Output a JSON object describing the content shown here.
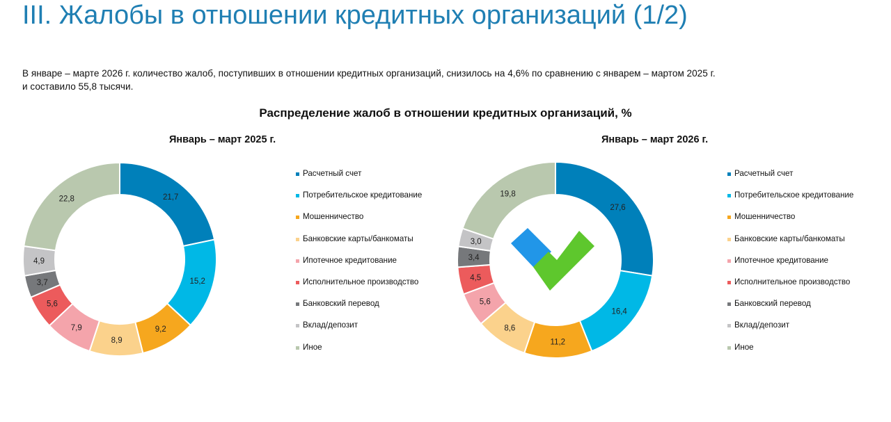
{
  "header": {
    "title": "III. Жалобы в отношении кредитных организаций (1/2)",
    "intro_line1": "В январе – марте 2026 г. количество жалоб, поступивших в отношении кредитных организаций, снизилось на 4,6% по сравнению с январем – мартом 2025 г.",
    "intro_line2": "и составило 55,8 тысячи."
  },
  "main_title": "Распределение жалоб в отношении кредитных организаций, %",
  "colors": {
    "title": "#1f7fb3",
    "categories": [
      "#0080ba",
      "#00b8e6",
      "#f6a71e",
      "#fbd28c",
      "#f4a4ab",
      "#ec5b5c",
      "#76787b",
      "#c4c4c6",
      "#b9c8ae"
    ],
    "logo_blue": "#2196e8",
    "logo_green": "#5ec72d"
  },
  "chart_data": [
    {
      "type": "pie",
      "title": "Январь – март 2025 г.",
      "categories": [
        "Расчетный счет",
        "Потребительское кредитование",
        "Мошенничество",
        "Банковские карты/банкоматы",
        "Ипотечное кредитование",
        "Исполнительное производство",
        "Банковский перевод",
        "Вклад/депозит",
        "Иное"
      ],
      "values": [
        21.7,
        15.2,
        9.2,
        8.9,
        7.9,
        5.6,
        3.7,
        4.9,
        22.8
      ],
      "value_labels": [
        "21,7",
        "15,2",
        "9,2",
        "8,9",
        "7,9",
        "5,6",
        "3,7",
        "4,9",
        "22,8"
      ],
      "legend": "right"
    },
    {
      "type": "pie",
      "title": "Январь – март 2026 г.",
      "categories": [
        "Расчетный счет",
        "Потребительское кредитование",
        "Мошенничество",
        "Банковские карты/банкоматы",
        "Ипотечное кредитование",
        "Исполнительное производство",
        "Банковский перевод",
        "Вклад/депозит",
        "Иное"
      ],
      "values": [
        27.6,
        16.4,
        11.2,
        8.6,
        5.6,
        4.5,
        3.4,
        3.0,
        19.8
      ],
      "value_labels": [
        "27,6",
        "16,4",
        "11,2",
        "8,6",
        "5,6",
        "4,5",
        "3,4",
        "3,0",
        "19,8"
      ],
      "legend": "right"
    }
  ]
}
